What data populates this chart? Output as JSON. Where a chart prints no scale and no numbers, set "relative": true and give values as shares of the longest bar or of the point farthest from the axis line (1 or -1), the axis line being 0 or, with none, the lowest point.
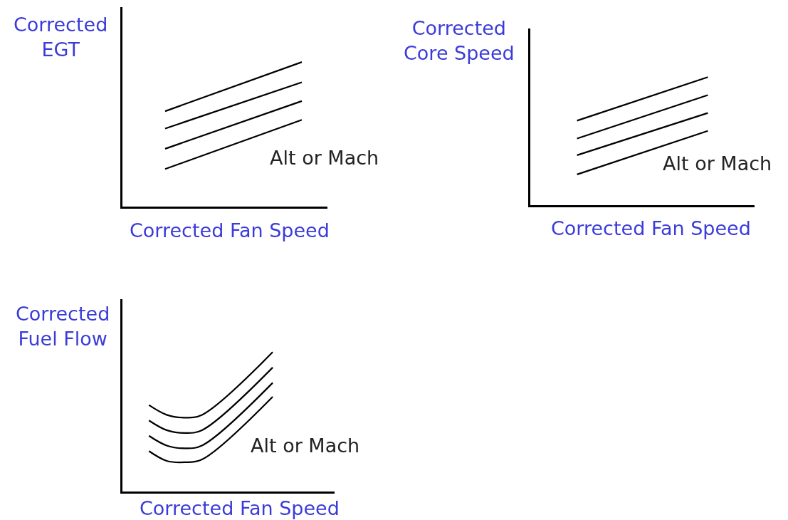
{
  "chart_data": [
    {
      "type": "line",
      "relative": true,
      "ylabel": "Corrected\nEGT",
      "xlabel": "Corrected Fan Speed",
      "annotations": [
        "Alt or Mach"
      ],
      "categories": [
        null,
        null,
        null,
        null,
        null,
        null,
        null,
        null,
        null,
        null,
        null,
        null
      ],
      "line_style": "solid",
      "marker": "none",
      "series": [
        {
          "color": "#000000",
          "values": [
            null,
            null,
            0.66,
            null,
            null,
            null,
            null,
            null,
            null,
            null,
            1.0,
            null
          ]
        },
        {
          "color": "#000000",
          "values": [
            null,
            null,
            0.54,
            null,
            null,
            null,
            null,
            null,
            null,
            null,
            0.86,
            null
          ]
        },
        {
          "color": "#000000",
          "values": [
            null,
            null,
            0.4,
            null,
            null,
            null,
            null,
            null,
            null,
            null,
            0.73,
            null
          ]
        },
        {
          "color": "#000000",
          "values": [
            null,
            null,
            0.26,
            null,
            null,
            null,
            null,
            null,
            null,
            null,
            0.6,
            null
          ]
        }
      ]
    },
    {
      "type": "line",
      "relative": true,
      "ylabel": "Corrected\nCore Speed",
      "xlabel": "Corrected Fan Speed",
      "annotations": [
        "Alt or Mach"
      ],
      "categories": [
        null,
        null,
        null,
        null,
        null,
        null,
        null,
        null,
        null,
        null,
        null,
        null
      ],
      "line_style": "solid",
      "marker": "none",
      "series": [
        {
          "color": "#000000",
          "values": [
            null,
            null,
            0.66,
            null,
            null,
            null,
            null,
            null,
            null,
            1.0,
            null,
            null
          ]
        },
        {
          "color": "#000000",
          "values": [
            null,
            null,
            0.52,
            null,
            null,
            null,
            null,
            null,
            null,
            0.86,
            null,
            null
          ]
        },
        {
          "color": "#000000",
          "values": [
            null,
            null,
            0.39,
            null,
            null,
            null,
            null,
            null,
            null,
            0.72,
            null,
            null
          ]
        },
        {
          "color": "#000000",
          "values": [
            null,
            null,
            0.24,
            null,
            null,
            null,
            null,
            null,
            null,
            0.58,
            null,
            null
          ]
        }
      ]
    },
    {
      "type": "line",
      "relative": true,
      "ylabel": "Corrected\nFuel Flow",
      "xlabel": "Corrected Fan Speed",
      "annotations": [
        "Alt or Mach"
      ],
      "categories": [
        null,
        null,
        null,
        null,
        null,
        null,
        null,
        null,
        null,
        null,
        null,
        null
      ],
      "line_style": "solid",
      "marker": "none",
      "series": [
        {
          "color": "#000000",
          "values": [
            null,
            0.62,
            0.55,
            0.53,
            0.55,
            null,
            null,
            null,
            1.0,
            null,
            null,
            null
          ]
        },
        {
          "color": "#000000",
          "values": [
            null,
            0.51,
            0.44,
            0.42,
            0.44,
            null,
            null,
            null,
            0.89,
            null,
            null,
            null
          ]
        },
        {
          "color": "#000000",
          "values": [
            null,
            0.4,
            0.33,
            0.31,
            0.33,
            null,
            null,
            null,
            0.78,
            null,
            null,
            null
          ]
        },
        {
          "color": "#000000",
          "values": [
            null,
            0.29,
            0.22,
            0.21,
            0.23,
            null,
            null,
            null,
            0.68,
            null,
            null,
            null
          ]
        }
      ]
    }
  ]
}
